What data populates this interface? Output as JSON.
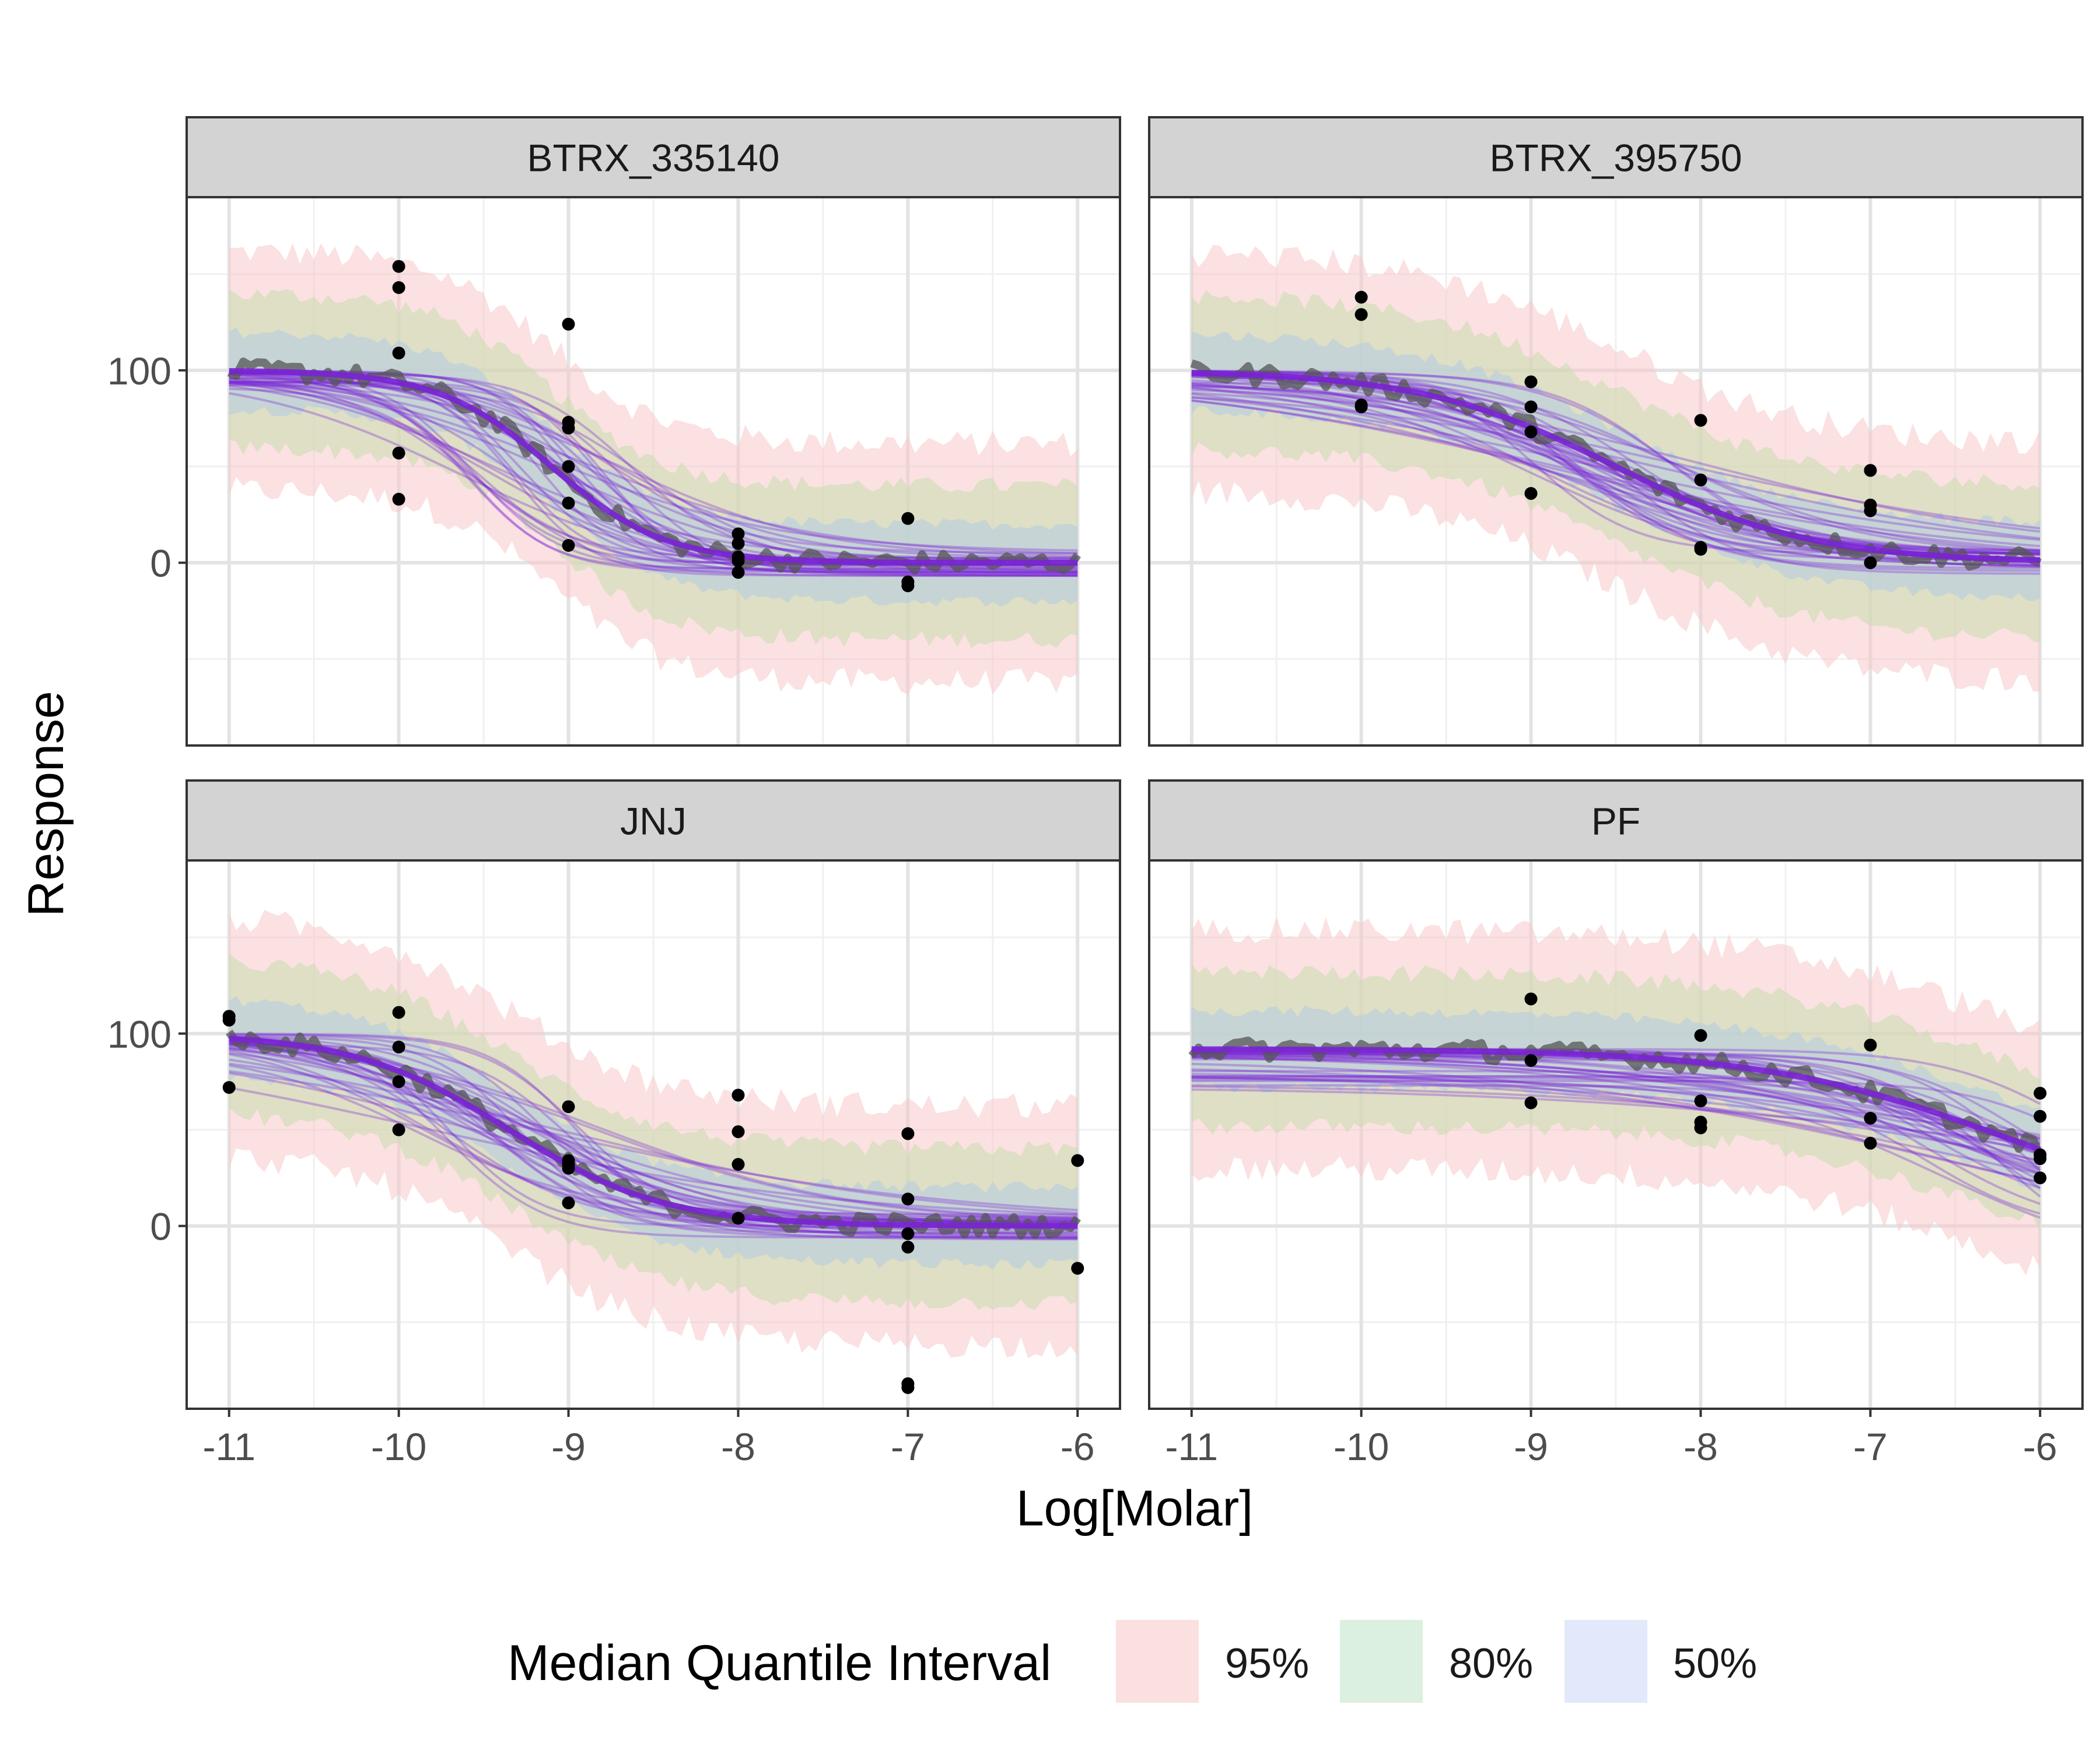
{
  "chart_data": {
    "type": "line",
    "subtype": "faceted dose-response with quantile interval ribbons",
    "xlabel": "Log[Molar]",
    "ylabel": "Response",
    "xlim": [
      -11.25,
      -5.75
    ],
    "ylim": [
      -95,
      190
    ],
    "x_ticks": [
      -11,
      -10,
      -9,
      -8,
      -7,
      -6
    ],
    "x_tick_labels": [
      "-11",
      "-10",
      "-9",
      "-8",
      "-7",
      "-6"
    ],
    "y_ticks": [
      0,
      100
    ],
    "y_tick_labels": [
      "0",
      "100"
    ],
    "y_minor_gridlines": [
      -50,
      50,
      150
    ],
    "legend": {
      "title": "Median Quantile Interval",
      "position": "bottom",
      "items": [
        {
          "label": "95%",
          "color": "#fbe0e0"
        },
        {
          "label": "80%",
          "color": "#dcf0df"
        },
        {
          "label": "50%",
          "color": "#e1e9fa"
        }
      ]
    },
    "colors": {
      "ribbon_95": "#f8c9c9",
      "ribbon_80": "#c7dfae",
      "ribbon_50": "#b6cde0",
      "median_line": "#555555",
      "draws": "#7a22d6",
      "points": "#000000",
      "strip": "#d3d3d3"
    },
    "panels": [
      {
        "name": "BTRX_335140",
        "curve": {
          "top": 100,
          "bottom": 0,
          "ic50": -9.1,
          "hill": 1.3
        },
        "points": [
          [
            -10,
            154
          ],
          [
            -10,
            143
          ],
          [
            -10,
            109
          ],
          [
            -10,
            57
          ],
          [
            -10,
            33
          ],
          [
            -9,
            124
          ],
          [
            -9,
            73
          ],
          [
            -9,
            70
          ],
          [
            -9,
            50
          ],
          [
            -9,
            31
          ],
          [
            -9,
            9
          ],
          [
            -8,
            15
          ],
          [
            -8,
            10
          ],
          [
            -8,
            3
          ],
          [
            -8,
            1
          ],
          [
            -8,
            -5
          ],
          [
            -7,
            23
          ],
          [
            -7,
            -10
          ],
          [
            -7,
            -12
          ]
        ]
      },
      {
        "name": "BTRX_395750",
        "curve": {
          "top": 100,
          "bottom": 0,
          "ic50": -8.5,
          "hill": 0.75
        },
        "points": [
          [
            -10,
            138
          ],
          [
            -10,
            129
          ],
          [
            -10,
            82
          ],
          [
            -10,
            81
          ],
          [
            -9,
            94
          ],
          [
            -9,
            81
          ],
          [
            -9,
            68
          ],
          [
            -9,
            36
          ],
          [
            -8,
            74
          ],
          [
            -8,
            43
          ],
          [
            -8,
            8
          ],
          [
            -8,
            7
          ],
          [
            -7,
            48
          ],
          [
            -7,
            30
          ],
          [
            -7,
            27
          ],
          [
            -7,
            0
          ]
        ]
      },
      {
        "name": "JNJ",
        "curve": {
          "top": 100,
          "bottom": 0,
          "ic50": -9.35,
          "hill": 0.95
        },
        "points": [
          [
            -11,
            109
          ],
          [
            -11,
            107
          ],
          [
            -11,
            72
          ],
          [
            -10,
            111
          ],
          [
            -10,
            93
          ],
          [
            -10,
            75
          ],
          [
            -10,
            50
          ],
          [
            -9,
            62
          ],
          [
            -9,
            34
          ],
          [
            -9,
            32
          ],
          [
            -9,
            30
          ],
          [
            -9,
            12
          ],
          [
            -8,
            68
          ],
          [
            -8,
            49
          ],
          [
            -8,
            32
          ],
          [
            -8,
            4
          ],
          [
            -7,
            48
          ],
          [
            -7,
            14
          ],
          [
            -7,
            -4
          ],
          [
            -7,
            -11
          ],
          [
            -7,
            -82
          ],
          [
            -7,
            -84
          ],
          [
            -6,
            34
          ],
          [
            -6,
            -22
          ]
        ]
      },
      {
        "name": "PF",
        "curve": {
          "top": 92,
          "bottom": 0,
          "ic50": -6.2,
          "hill": 0.6
        },
        "points": [
          [
            -9,
            118
          ],
          [
            -9,
            86
          ],
          [
            -9,
            64
          ],
          [
            -8,
            99
          ],
          [
            -8,
            65
          ],
          [
            -8,
            54
          ],
          [
            -8,
            51
          ],
          [
            -7,
            94
          ],
          [
            -7,
            56
          ],
          [
            -7,
            43
          ],
          [
            -6,
            69
          ],
          [
            -6,
            57
          ],
          [
            -6,
            37
          ],
          [
            -6,
            35
          ],
          [
            -6,
            25
          ]
        ]
      }
    ]
  }
}
